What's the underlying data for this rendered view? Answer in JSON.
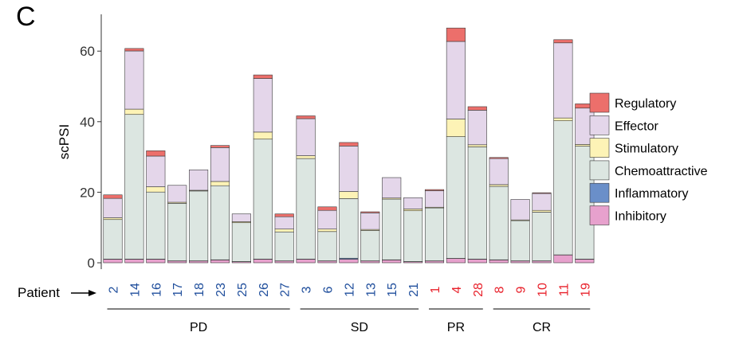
{
  "panel_label": "C",
  "patient_label": "Patient",
  "chart_data": {
    "type": "bar",
    "stacked": true,
    "ylabel": "scPSI",
    "xlabel": "",
    "ylim": [
      0,
      70
    ],
    "yticks": [
      0,
      20,
      40,
      60
    ],
    "grid": false,
    "legend_position": "right",
    "categories": [
      "2",
      "14",
      "16",
      "17",
      "18",
      "23",
      "25",
      "26",
      "27",
      "3",
      "6",
      "12",
      "13",
      "15",
      "21",
      "1",
      "4",
      "28",
      "8",
      "9",
      "10",
      "11",
      "19"
    ],
    "category_colors": [
      "#1f4e9c",
      "#1f4e9c",
      "#1f4e9c",
      "#1f4e9c",
      "#1f4e9c",
      "#1f4e9c",
      "#1f4e9c",
      "#1f4e9c",
      "#1f4e9c",
      "#1f4e9c",
      "#1f4e9c",
      "#1f4e9c",
      "#1f4e9c",
      "#1f4e9c",
      "#1f4e9c",
      "#e8202a",
      "#e8202a",
      "#e8202a",
      "#e8202a",
      "#e8202a",
      "#e8202a",
      "#e8202a",
      "#e8202a"
    ],
    "groups": [
      {
        "label": "PD",
        "start": 0,
        "end": 8
      },
      {
        "label": "SD",
        "start": 9,
        "end": 14
      },
      {
        "label": "PR",
        "start": 15,
        "end": 17
      },
      {
        "label": "CR",
        "start": 18,
        "end": 22
      }
    ],
    "series": [
      {
        "name": "Inhibitory",
        "color": "#e7a1cd",
        "values": [
          1,
          1,
          1,
          0.5,
          0.5,
          0.8,
          0.3,
          1,
          0.5,
          1,
          0.5,
          1,
          0.5,
          0.8,
          0.3,
          0.5,
          1.2,
          1,
          0.8,
          0.5,
          0.5,
          2.2,
          1
        ]
      },
      {
        "name": "Inflammatory",
        "color": "#6a8fc9",
        "values": [
          0.05,
          0.05,
          0.05,
          0.05,
          0.05,
          0.05,
          0.05,
          0.05,
          0.05,
          0.05,
          0.05,
          0.3,
          0.05,
          0.05,
          0.05,
          0.05,
          0.05,
          0.05,
          0.05,
          0.05,
          0.05,
          0.05,
          0.05
        ]
      },
      {
        "name": "Chemoattractive",
        "color": "#dce6e1",
        "values": [
          11.2,
          41,
          19,
          16.3,
          19.8,
          21,
          11,
          34,
          8.2,
          28.5,
          8.3,
          16.9,
          8.6,
          17.2,
          14.4,
          15,
          34.5,
          31.8,
          20.8,
          11.4,
          13.8,
          38,
          32
        ]
      },
      {
        "name": "Stimulatory",
        "color": "#fdf3b6",
        "values": [
          0.5,
          1.5,
          1.5,
          0.3,
          0.2,
          1.2,
          0.3,
          2,
          0.8,
          0.8,
          0.7,
          2,
          0.3,
          0.3,
          0.5,
          0.2,
          5,
          0.6,
          0.5,
          0.2,
          0.5,
          0.8,
          0.5
        ]
      },
      {
        "name": "Effector",
        "color": "#e4d6ea",
        "values": [
          5.5,
          16.5,
          8.7,
          4.8,
          5.8,
          9.6,
          2.2,
          15.2,
          3.5,
          10.5,
          5.3,
          12.9,
          4.7,
          5.8,
          3.2,
          4.7,
          22,
          9.8,
          7.4,
          5.8,
          4.8,
          21.3,
          10.3
        ]
      },
      {
        "name": "Regulatory",
        "color": "#ec6f6b",
        "values": [
          1,
          0.7,
          1.5,
          0,
          0,
          0.6,
          0,
          1,
          0.8,
          0.8,
          1,
          1,
          0.3,
          0,
          0,
          0.3,
          3.8,
          1,
          0.3,
          0,
          0.2,
          0.9,
          1.2
        ]
      }
    ],
    "legend_order": [
      "Regulatory",
      "Effector",
      "Stimulatory",
      "Chemoattractive",
      "Inflammatory",
      "Inhibitory"
    ]
  }
}
